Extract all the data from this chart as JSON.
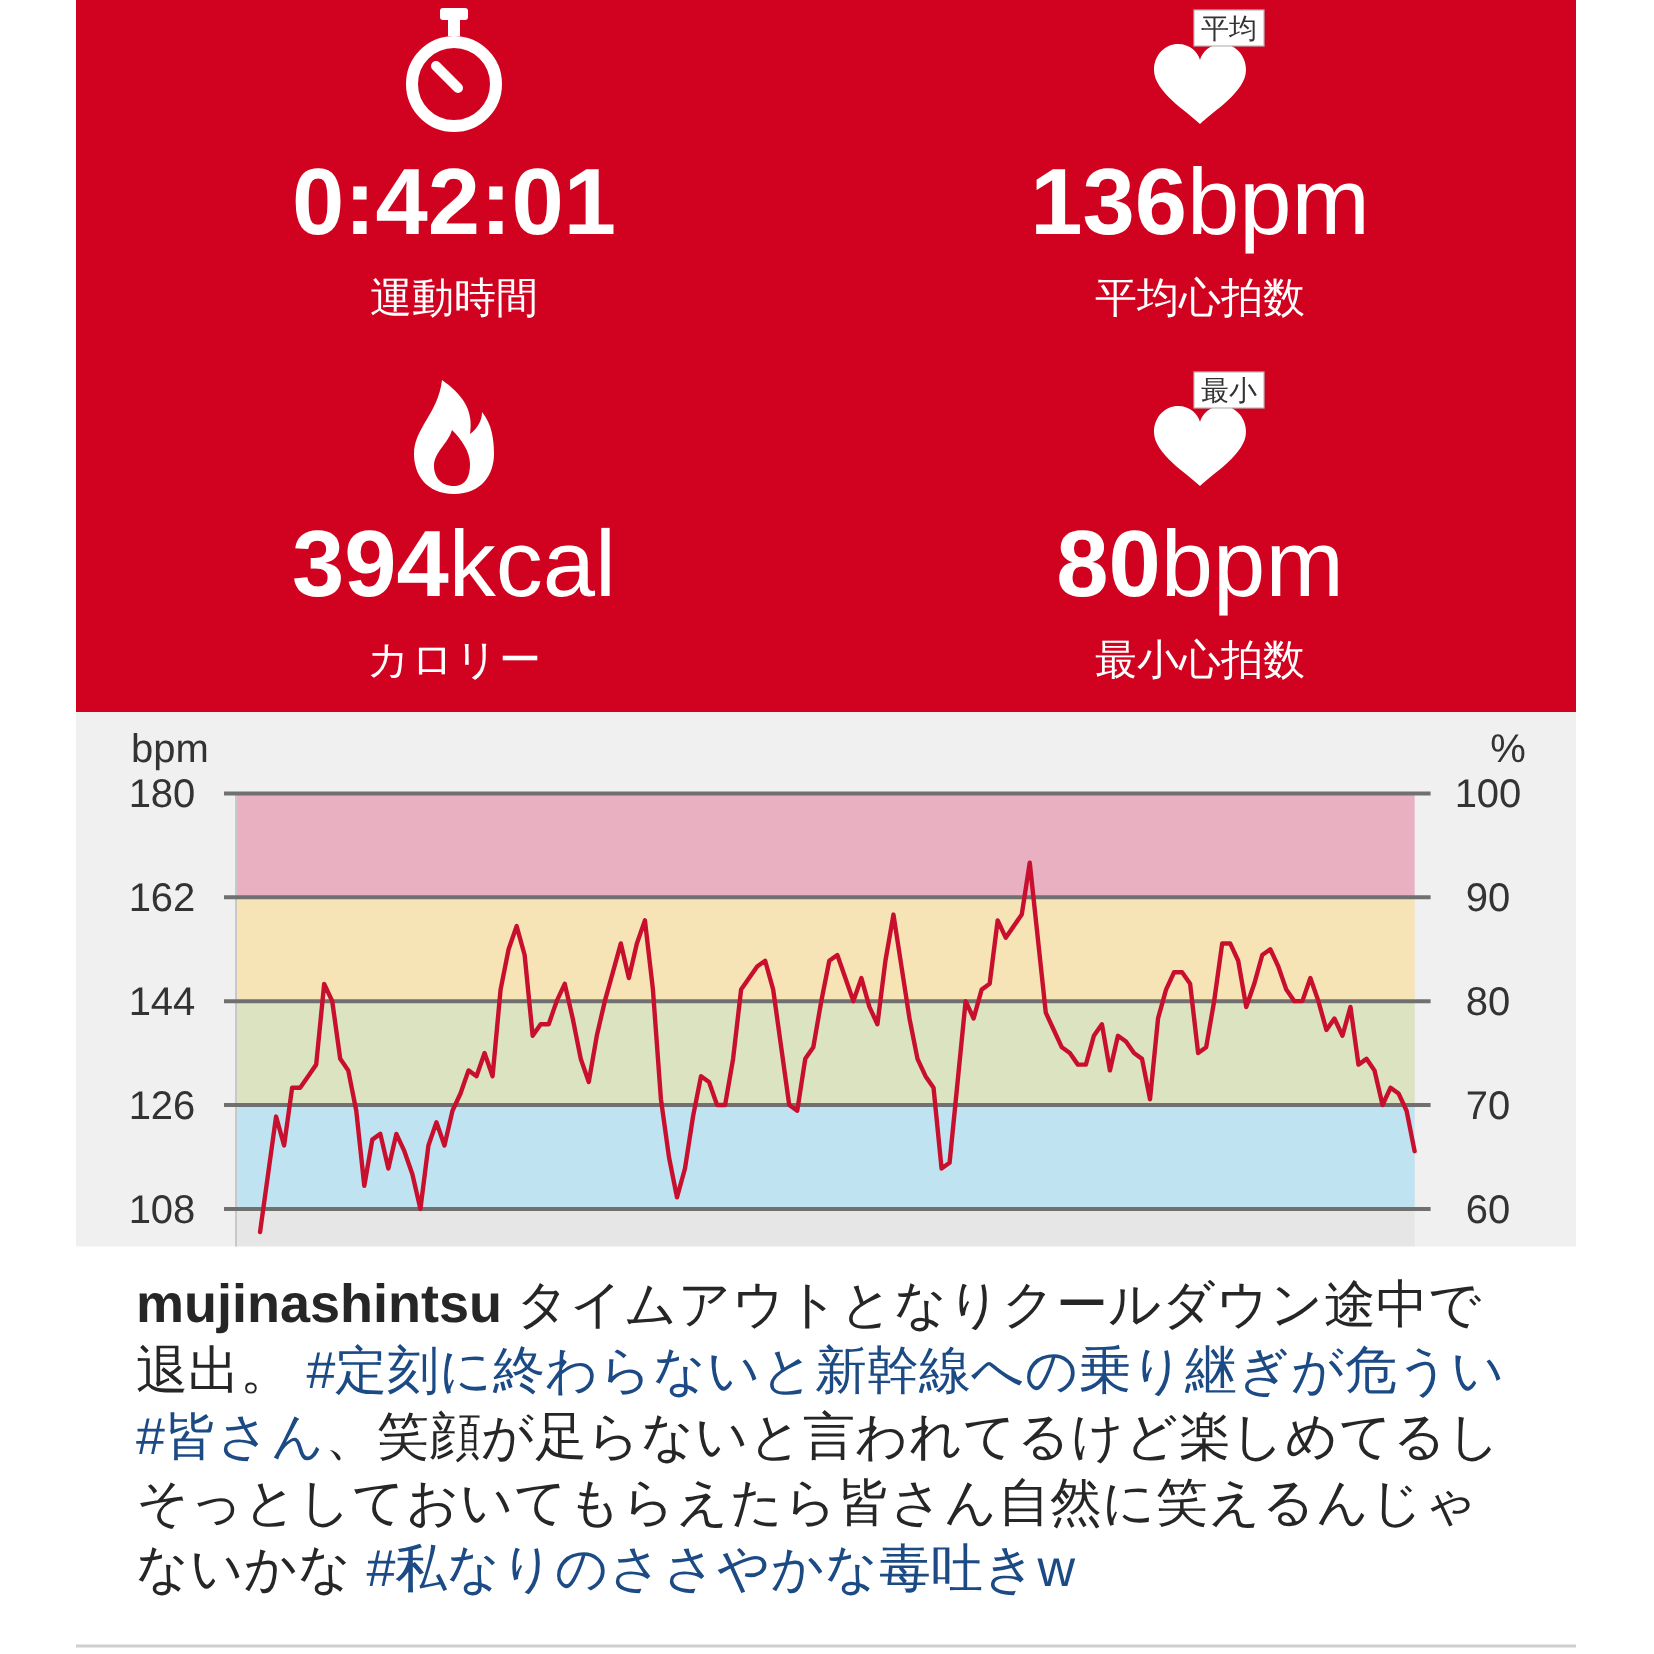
{
  "chart_data": [
    {
      "type": "other",
      "annotations": [
        "0:42:01",
        "運動時間",
        "136bpm",
        "平均心拍数",
        "394kcal",
        "カロリー",
        "80bpm",
        "最小心拍数",
        "平均",
        "最小"
      ]
    },
    {
      "type": "line",
      "ylabel": "bpm",
      "y2label": "%",
      "categories": [
        null,
        null,
        null,
        null,
        null,
        null,
        null,
        null,
        null,
        null,
        null,
        null,
        null,
        null,
        null,
        null,
        null,
        null,
        null,
        null,
        null,
        null,
        null,
        null,
        null,
        null,
        null,
        null,
        null,
        null,
        null,
        null,
        null,
        null,
        null,
        null,
        null,
        null,
        null,
        null,
        null,
        null,
        null,
        null,
        null,
        null,
        null,
        null,
        null,
        null,
        null,
        null,
        null,
        null,
        null,
        null,
        null,
        null,
        null,
        null,
        null,
        null,
        null,
        null,
        null,
        null,
        null,
        null,
        null,
        null,
        null,
        null,
        null,
        null,
        null,
        null,
        null,
        null,
        null,
        null,
        null,
        null,
        null,
        null,
        null,
        null,
        null,
        null,
        null,
        null,
        null,
        null,
        null,
        null,
        null,
        null,
        null,
        null,
        null,
        null,
        null,
        null,
        null,
        null,
        null,
        null,
        null,
        null,
        null,
        null,
        null,
        null,
        null,
        null,
        null,
        null,
        null,
        null,
        null,
        null,
        null,
        null,
        null,
        null,
        null,
        null,
        null,
        null,
        null,
        null,
        null,
        null,
        null,
        null,
        null,
        null,
        null,
        null,
        null,
        null,
        null,
        null,
        null,
        null,
        null,
        null,
        null,
        null
      ],
      "series": [
        {
          "color": "#c8102e",
          "values": [
            null,
            null,
            null,
            104,
            114,
            124,
            119,
            129,
            129,
            131,
            133,
            147,
            144,
            134,
            132,
            125,
            112,
            120,
            121,
            115,
            121,
            118,
            114,
            108,
            119,
            123,
            119,
            125,
            128,
            132,
            131,
            135,
            131,
            146,
            153,
            157,
            152,
            138,
            140,
            140,
            144,
            147,
            141,
            134,
            130,
            138,
            144,
            149,
            154,
            148,
            154,
            158,
            146,
            127,
            117,
            110,
            115,
            124,
            131,
            130,
            126,
            126,
            134,
            146,
            148,
            150,
            151,
            146,
            136,
            126,
            125,
            134,
            136,
            144,
            151,
            152,
            148,
            144,
            148,
            143,
            140,
            151,
            159,
            150,
            141,
            134,
            131,
            129,
            115,
            116,
            130,
            144,
            141,
            146,
            147,
            158,
            155,
            157,
            159,
            168,
            155,
            142,
            139,
            136,
            135,
            133,
            133,
            138,
            140,
            132,
            138,
            137,
            135,
            134,
            127,
            141,
            146,
            149,
            149,
            147,
            135,
            136,
            144,
            154,
            154,
            151,
            143,
            147,
            152,
            153,
            150,
            146,
            144,
            144,
            148,
            144,
            139,
            141,
            138,
            143,
            133,
            134,
            132,
            126,
            129,
            128,
            125,
            118
          ]
        }
      ],
      "ylim": [
        101.5,
        180
      ],
      "yticks": [
        108,
        126,
        144,
        162,
        180
      ],
      "y2lim": [
        56.4,
        100
      ],
      "y2ticks": [
        60,
        70,
        80,
        90,
        100
      ],
      "bands": [
        {
          "axis": "y",
          "from": 108,
          "to": 126,
          "color": "#bfe3f1"
        },
        {
          "axis": "y",
          "from": 126,
          "to": 144,
          "color": "#dce3c1"
        },
        {
          "axis": "y",
          "from": 144,
          "to": 162,
          "color": "#f6e3b6"
        },
        {
          "axis": "y",
          "from": 162,
          "to": 180,
          "color": "#e9b0c2"
        }
      ],
      "grid": "y"
    },
    {
      "type": "other",
      "annotations": [
        "mujinashintsu タイムアウトとなりクールダウン途中で退出。 #定刻に終わらないと新幹線への乗り継ぎが危うい #皆さん、笑顔が足らないと言われてるけど楽しめてるしそっとしておいてもらえたら皆さん自然に笑えるんじゃないかな #私なりのささやかな毒吐きw"
      ]
    }
  ]
}
